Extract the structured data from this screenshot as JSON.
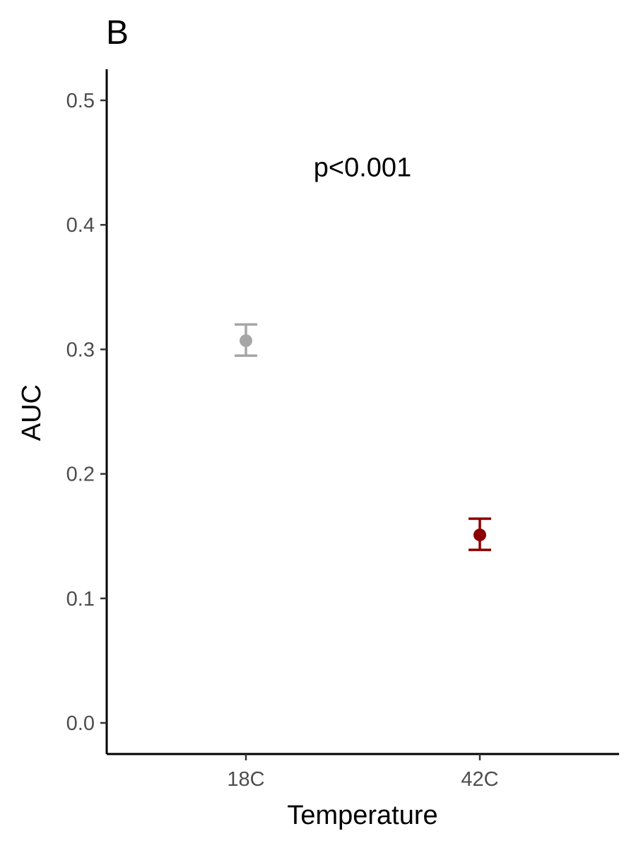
{
  "chart_data": {
    "type": "scatter",
    "panel_label": "B",
    "xlabel": "Temperature",
    "ylabel": "AUC",
    "categories": [
      "18C",
      "42C"
    ],
    "ylim": [
      -0.025,
      0.525
    ],
    "yticks": [
      0.0,
      0.1,
      0.2,
      0.3,
      0.4,
      0.5
    ],
    "ytick_labels": [
      "0.0",
      "0.1",
      "0.2",
      "0.3",
      "0.4",
      "0.5"
    ],
    "points": [
      {
        "category": "18C",
        "value": 0.307,
        "lower": 0.295,
        "upper": 0.32,
        "color": "#a6a6a6"
      },
      {
        "category": "42C",
        "value": 0.151,
        "lower": 0.139,
        "upper": 0.164,
        "color": "#8b0000"
      }
    ],
    "annotation": "p<0.001",
    "annotation_y": 0.447,
    "grid": false,
    "legend": "none"
  }
}
